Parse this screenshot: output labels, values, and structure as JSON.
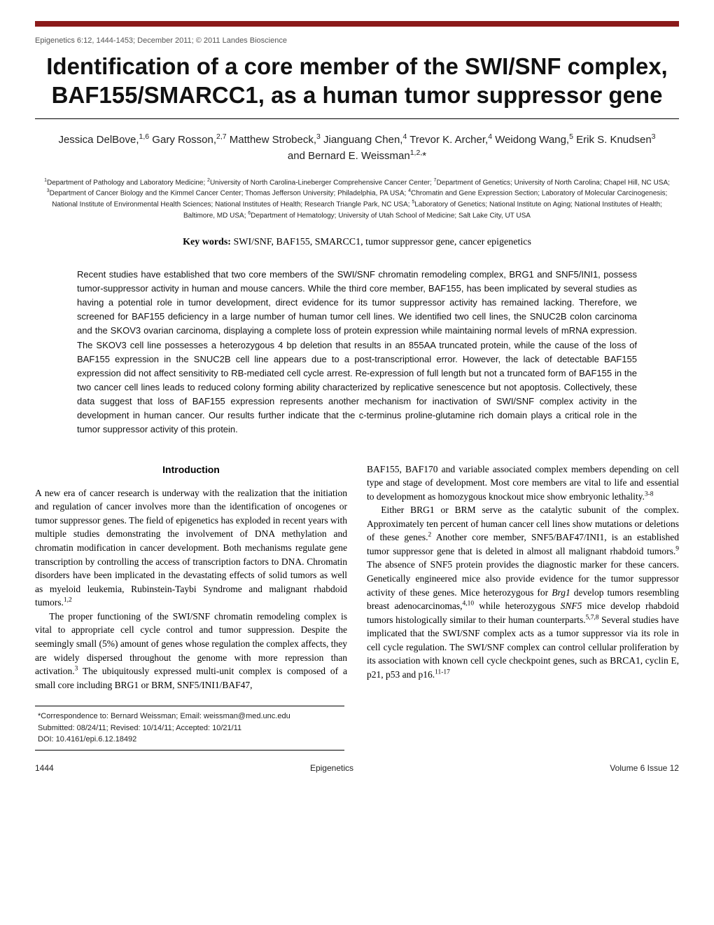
{
  "journal_info": "Epigenetics 6:12, 1444-1453; December 2011; © 2011 Landes Bioscience",
  "title": "Identification of a core member of the SWI/SNF complex, BAF155/SMARCC1, as a human tumor suppressor gene",
  "authors_html": "Jessica DelBove,<sup>1,6</sup> Gary Rosson,<sup>2,7</sup> Matthew Strobeck,<sup>3</sup> Jianguang Chen,<sup>4</sup> Trevor K. Archer,<sup>4</sup> Weidong Wang,<sup>5</sup> Erik S. Knudsen<sup>3</sup><br>and Bernard E. Weissman<sup>1,2,</sup>*",
  "affiliations_html": "<sup>1</sup>Department of Pathology and Laboratory Medicine; <sup>2</sup>University of North Carolina-Lineberger Comprehensive Cancer Center; <sup>7</sup>Department of Genetics; University of North Carolina; Chapel Hill, NC USA; <sup>3</sup>Department of Cancer Biology and the Kimmel Cancer Center; Thomas Jefferson University; Philadelphia, PA USA; <sup>4</sup>Chromatin and Gene Expression Section; Laboratory of Molecular Carcinogenesis; National Institute of Environmental Health Sciences; National Institutes of Health; Research Triangle Park, NC USA; <sup>5</sup>Laboratory of Genetics; National Institute on Aging; National Institutes of Health; Baltimore, MD USA; <sup>6</sup>Department of Hematology; University of Utah School of Medicine; Salt Lake City, UT USA",
  "keywords_label": "Key words:",
  "keywords_text": " SWI/SNF, BAF155, SMARCC1, tumor suppressor gene, cancer epigenetics",
  "abstract": "Recent studies have established that two core members of the SWI/SNF chromatin remodeling complex, BRG1 and SNF5/INI1, possess tumor-suppressor activity in human and mouse cancers. While the third core member, BAF155, has been implicated by several studies as having a potential role in tumor development, direct evidence for its tumor suppressor activity has remained lacking. Therefore, we screened for BAF155 deficiency in a large number of human tumor cell lines. We identified two cell lines, the SNUC2B colon carcinoma and the SKOV3 ovarian carcinoma, displaying a complete loss of protein expression while maintaining normal levels of mRNA expression. The SKOV3 cell line possesses a heterozygous 4 bp deletion that results in an 855AA truncated protein, while the cause of the loss of BAF155 expression in the SNUC2B cell line appears due to a post-transcriptional error. However, the lack of detectable BAF155 expression did not affect sensitivity to RB-mediated cell cycle arrest. Re-expression of full length but not a truncated form of BAF155 in the two cancer cell lines leads to reduced colony forming ability characterized by replicative senescence but not apoptosis. Collectively, these data suggest that loss of BAF155 expression represents another mechanism for inactivation of SWI/SNF complex activity in the development in human cancer. Our results further indicate that the c-terminus proline-glutamine rich domain plays a critical role in the tumor suppressor activity of this protein.",
  "intro_heading": "Introduction",
  "col1_p1": "A new era of cancer research is underway with the realization that the initiation and regulation of cancer involves more than the identification of oncogenes or tumor suppressor genes. The field of epigenetics has exploded in recent years with multiple studies demonstrating the involvement of DNA methylation and chromatin modification in cancer development. Both mechanisms regulate gene transcription by controlling the access of transcription factors to DNA. Chromatin disorders have been implicated in the devastating effects of solid tumors as well as myeloid leukemia, Rubinstein-Taybi Syndrome and malignant rhabdoid tumors.",
  "col1_p1_ref": "1,2",
  "col1_p2a": "The proper functioning of the SWI/SNF chromatin remodeling complex is vital to appropriate cell cycle control and tumor suppression. Despite the seemingly small (5%) amount of genes whose regulation the complex affects, they are widely dispersed throughout the genome with more repression than activation.",
  "col1_p2_ref": "3",
  "col1_p2b": " The ubiquitously expressed multi-unit complex is composed of a small core including BRG1 or BRM, SNF5/INI1/BAF47,",
  "col2_p0a": "BAF155, BAF170 and variable associated complex members depending on cell type and stage of development. Most core members are vital to life and essential to development as homozygous knockout mice show embryonic lethality.",
  "col2_p0_ref": "3-8",
  "col2_p1a": "Either BRG1 or BRM serve as the catalytic subunit of the complex. Approximately ten percent of human cancer cell lines show mutations or deletions of these genes.",
  "col2_p1_ref1": "2",
  "col2_p1b": " Another core member, SNF5/BAF47/INI1, is an established tumor suppressor gene that is deleted in almost all malignant rhabdoid tumors.",
  "col2_p1_ref2": "9",
  "col2_p1c": " The absence of SNF5 protein provides the diagnostic marker for these cancers. Genetically engineered mice also provide evidence for the tumor suppressor activity of these genes. Mice heterozygous for ",
  "col2_p1_brg1": "Brg1",
  "col2_p1d": " develop tumors resembling breast adenocarcinomas,",
  "col2_p1_ref3": "4,10",
  "col2_p1e": " while heterozygous ",
  "col2_p1_snf5": "SNF5",
  "col2_p1f": " mice develop rhabdoid tumors histologically similar to their human counterparts.",
  "col2_p1_ref4": "5,7,8",
  "col2_p1g": " Several studies have implicated that the SWI/SNF complex acts as a tumor suppressor via its role in cell cycle regulation. The SWI/SNF complex can control cellular proliferation by its association with known cell cycle checkpoint genes, such as BRCA1, cyclin E, p21, p53 and p16.",
  "col2_p1_ref5": "11-17",
  "correspondence": {
    "line1": "*Correspondence to: Bernard Weissman; Email: weissman@med.unc.edu",
    "line2": "Submitted: 08/24/11; Revised: 10/14/11; Accepted: 10/21/11",
    "line3": "DOI: 10.4161/epi.6.12.18492"
  },
  "footer": {
    "page": "1444",
    "journal": "Epigenetics",
    "issue": "Volume 6 Issue 12"
  },
  "colors": {
    "bar": "#8b1a1a"
  }
}
